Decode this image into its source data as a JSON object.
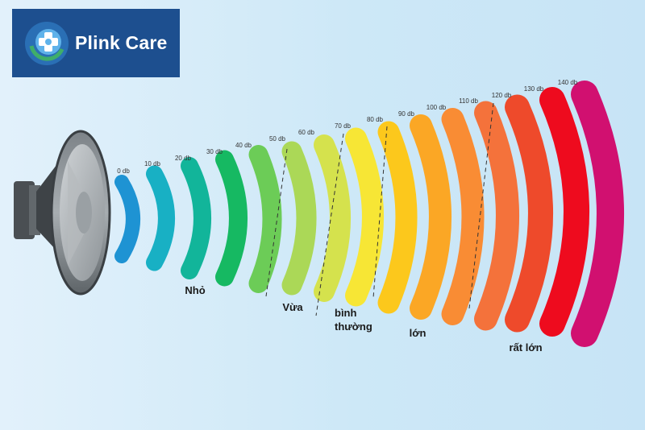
{
  "brand": {
    "name": "Plink Care",
    "icon": "medical-cross-circle-icon",
    "bg_color": "#1d4f8f"
  },
  "speaker_icon": "loudspeaker-icon",
  "levels": [
    {
      "label": "0 db",
      "color": "#1e93d3"
    },
    {
      "label": "10 db",
      "color": "#18b0c4"
    },
    {
      "label": "20 db",
      "color": "#12b59a"
    },
    {
      "label": "30 db",
      "color": "#16b962"
    },
    {
      "label": "40 db",
      "color": "#6ccc57"
    },
    {
      "label": "50 db",
      "color": "#abd857"
    },
    {
      "label": "60 db",
      "color": "#d5e24d"
    },
    {
      "label": "70 db",
      "color": "#f7e635"
    },
    {
      "label": "80 db",
      "color": "#fcc81c"
    },
    {
      "label": "90 db",
      "color": "#fba725"
    },
    {
      "label": "100 db",
      "color": "#f98c34"
    },
    {
      "label": "110 db",
      "color": "#f4723b"
    },
    {
      "label": "120 db",
      "color": "#ee4a2b"
    },
    {
      "label": "130 db",
      "color": "#ee0b1e"
    },
    {
      "label": "140 db",
      "color": "#f01a82"
    },
    {
      "label": "",
      "color": "#d11070"
    }
  ],
  "categories": [
    {
      "name": "nho",
      "lines": [
        "Nhỏ"
      ]
    },
    {
      "name": "vua",
      "lines": [
        "Vừa"
      ]
    },
    {
      "name": "binh",
      "lines": [
        "bình",
        "thường"
      ]
    },
    {
      "name": "lon",
      "lines": [
        "lớn"
      ]
    },
    {
      "name": "rat-lon",
      "lines": [
        "rất lớn"
      ]
    }
  ]
}
